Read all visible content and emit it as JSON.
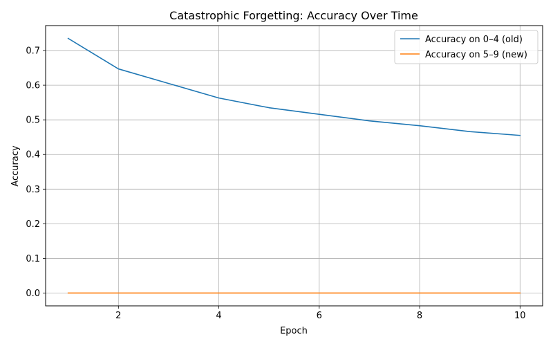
{
  "chart_data": {
    "type": "line",
    "title": "Catastrophic Forgetting: Accuracy Over Time",
    "xlabel": "Epoch",
    "ylabel": "Accuracy",
    "x": [
      1,
      2,
      3,
      4,
      5,
      6,
      7,
      8,
      9,
      10
    ],
    "xlim": [
      0.55,
      10.45
    ],
    "ylim": [
      -0.037,
      0.772
    ],
    "xticks": [
      2,
      4,
      6,
      8,
      10
    ],
    "yticks": [
      0.0,
      0.1,
      0.2,
      0.3,
      0.4,
      0.5,
      0.6,
      0.7
    ],
    "grid": true,
    "legend_position": "top-right",
    "series": [
      {
        "name": "Accuracy on 0–4 (old)",
        "color": "#1f77b4",
        "values": [
          0.735,
          0.647,
          0.605,
          0.563,
          0.535,
          0.516,
          0.497,
          0.483,
          0.466,
          0.455
        ]
      },
      {
        "name": "Accuracy on 5–9 (new)",
        "color": "#ff7f0e",
        "values": [
          0,
          0,
          0,
          0,
          0,
          0,
          0,
          0,
          0,
          0
        ]
      }
    ]
  }
}
